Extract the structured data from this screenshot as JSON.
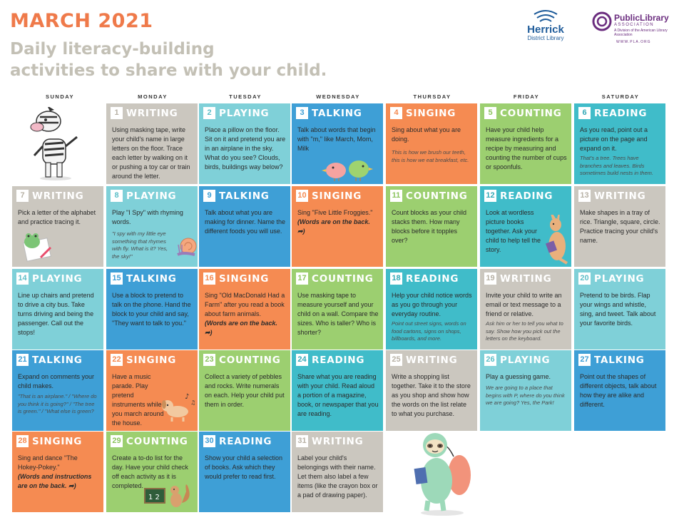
{
  "header": {
    "month": "MARCH 2021",
    "subtitle_line1": "Daily literacy-building",
    "subtitle_line2": "activities to share with your child."
  },
  "logos": {
    "herrick": {
      "name": "Herrick",
      "sub": "District Library"
    },
    "pla": {
      "name": "PublicLibrary",
      "assoc": "ASSOCIATION",
      "division": "A Division of the American Library Association",
      "web": "WWW.PLA.ORG"
    }
  },
  "days": [
    "SUNDAY",
    "MONDAY",
    "TUESDAY",
    "WEDNESDAY",
    "THURSDAY",
    "FRIDAY",
    "SATURDAY"
  ],
  "colors": {
    "writing": "#cbc7bf",
    "playing": "#7fd0d8",
    "talking": "#3e9fd6",
    "singing": "#f58b52",
    "counting": "#9ccf70",
    "reading": "#40bcc9",
    "title": "#ef7a4a",
    "subtitle": "#c3c0b5"
  },
  "cells": [
    {
      "num": "1",
      "cat": "WRITING",
      "text": "Using masking tape, write your child's name in large letters on the floor. Trace each letter by walking on it or pushing a toy car or train around the letter.",
      "note": ""
    },
    {
      "num": "2",
      "cat": "PLAYING",
      "text": "Place a pillow on the floor. Sit on it and pretend you are in an airplane in the sky. What do you see? Clouds, birds, buildings way below?",
      "note": ""
    },
    {
      "num": "3",
      "cat": "TALKING",
      "text": "Talk about words that begin with \"m,\" like March, Mom, Milk",
      "note": ""
    },
    {
      "num": "4",
      "cat": "SINGING",
      "text": "Sing about what you are doing.",
      "note": "This is how we brush our teeth, this is how we eat breakfast, etc."
    },
    {
      "num": "5",
      "cat": "COUNTING",
      "text": "Have your child help measure ingredients for a recipe by measuring and counting the number of cups or spoonfuls.",
      "note": ""
    },
    {
      "num": "6",
      "cat": "READING",
      "text": "As you read, point out a picture on the page and expand on it.",
      "note": "That's a tree. Trees have branches and leaves. Birds sometimes build nests in them."
    },
    {
      "num": "7",
      "cat": "WRITING",
      "text": "Pick a letter of the alphabet and practice tracing it.",
      "note": ""
    },
    {
      "num": "8",
      "cat": "PLAYING",
      "text": "Play \"I Spy\" with rhyming words.",
      "note": "\"I spy with my little eye something that rhymes with fly. What is it? Yes, the sky!\""
    },
    {
      "num": "9",
      "cat": "TALKING",
      "text": "Talk about what you are making for dinner. Name the different foods you will use.",
      "note": ""
    },
    {
      "num": "10",
      "cat": "SINGING",
      "text": "Sing \"Five Little Froggies.\"",
      "bold": "(Words are on the back. ➦)",
      "note": ""
    },
    {
      "num": "11",
      "cat": "COUNTING",
      "text": "Count blocks as your child stacks them. How many blocks before it topples over?",
      "note": ""
    },
    {
      "num": "12",
      "cat": "READING",
      "text": "Look at wordless picture books together. Ask your child to help tell the story.",
      "note": ""
    },
    {
      "num": "13",
      "cat": "WRITING",
      "text": "Make shapes in a tray of rice. Triangle, square, circle. Practice tracing your child's name.",
      "note": ""
    },
    {
      "num": "14",
      "cat": "PLAYING",
      "text": "Line up chairs and pretend to drive a city bus. Take turns driving and being the passenger. Call out the stops!",
      "note": ""
    },
    {
      "num": "15",
      "cat": "TALKING",
      "text": "Use a block to pretend to talk on the phone. Hand the block to your child and say, \"They want to talk to you.\"",
      "note": ""
    },
    {
      "num": "16",
      "cat": "SINGING",
      "text": "Sing \"Old MacDonald Had a Farm\" after you read a book about farm animals.",
      "bold": "(Words are on the back. ➦)",
      "note": ""
    },
    {
      "num": "17",
      "cat": "COUNTING",
      "text": "Use masking tape to measure yourself and your child on a wall. Compare the sizes. Who is taller? Who is shorter?",
      "note": ""
    },
    {
      "num": "18",
      "cat": "READING",
      "text": "Help your child notice words as you go through your everyday routine.",
      "note": "Point out street signs, words on food cartons, signs on shops, billboards, and more."
    },
    {
      "num": "19",
      "cat": "WRITING",
      "text": "Invite your child to write an email or text message to a friend or relative.",
      "note": "Ask him or her to tell you what to say. Show how you pick out the letters on the keyboard."
    },
    {
      "num": "20",
      "cat": "PLAYING",
      "text": "Pretend to be birds. Flap your wings and whistle, sing, and tweet. Talk about your favorite birds.",
      "note": ""
    },
    {
      "num": "21",
      "cat": "TALKING",
      "text": "Expand on comments your child makes.",
      "note": "\"That is an airplane.\" / \"Where do you think it is going?\" / \"The tree is green.\" / \"What else is green?"
    },
    {
      "num": "22",
      "cat": "SINGING",
      "text": "Have a music parade. Play pretend instruments while you march around the house.",
      "note": ""
    },
    {
      "num": "23",
      "cat": "COUNTING",
      "text": "Collect a variety of pebbles and rocks. Write numerals on each. Help your child put them in order.",
      "note": ""
    },
    {
      "num": "24",
      "cat": "READING",
      "text": "Share what you are reading with your child. Read aloud a portion of a magazine, book, or newspaper that you are reading.",
      "note": ""
    },
    {
      "num": "25",
      "cat": "WRITING",
      "text": "Write a shopping list together. Take it to the store as you shop and show how the words on the list relate to what you purchase.",
      "note": ""
    },
    {
      "num": "26",
      "cat": "PLAYING",
      "text": "Play a guessing game.",
      "note": "We are going to a place that begins with P, where do you think we are going? Yes, the Park!"
    },
    {
      "num": "27",
      "cat": "TALKING",
      "text": "Point out the shapes of different objects, talk about how they are alike and different.",
      "note": ""
    },
    {
      "num": "28",
      "cat": "SINGING",
      "text": "Sing and dance \"The Hokey-Pokey.\"",
      "bold": "(Words and instructions are on the back. ➦)",
      "note": ""
    },
    {
      "num": "29",
      "cat": "COUNTING",
      "text": "Create a to-do list for the day. Have your child check off each activity as it is completed.",
      "note": ""
    },
    {
      "num": "30",
      "cat": "READING",
      "text": "Show your child a selection of books. Ask which they would prefer to read first.",
      "note": ""
    },
    {
      "num": "31",
      "cat": "WRITING",
      "text": "Label your child's belongings with their name. Let them also label a few items (like the crayon box or a pad of drawing paper).",
      "note": ""
    }
  ]
}
